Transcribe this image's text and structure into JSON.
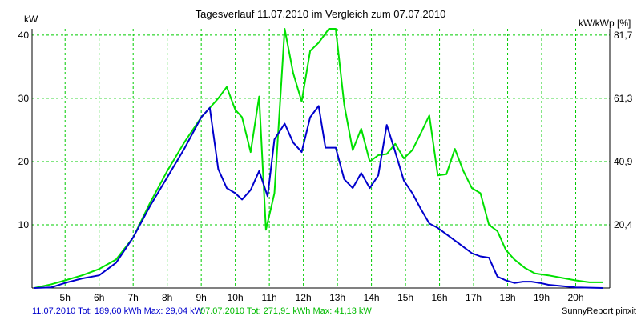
{
  "chart_data": {
    "type": "line",
    "title": "Tagesverlauf 11.07.2010 im Vergleich zum 07.07.2010",
    "ylabel_left": "kW",
    "ylabel_right": "kW/kWp [%]",
    "x_ticks": [
      {
        "t": 5,
        "label": "5h"
      },
      {
        "t": 6,
        "label": "6h"
      },
      {
        "t": 7,
        "label": "7h"
      },
      {
        "t": 8,
        "label": "8h"
      },
      {
        "t": 9,
        "label": "9h"
      },
      {
        "t": 10,
        "label": "10h"
      },
      {
        "t": 11,
        "label": "11h"
      },
      {
        "t": 12,
        "label": "12h"
      },
      {
        "t": 13,
        "label": "13h"
      },
      {
        "t": 14,
        "label": "14h"
      },
      {
        "t": 15,
        "label": "15h"
      },
      {
        "t": 16,
        "label": "16h"
      },
      {
        "t": 17,
        "label": "17h"
      },
      {
        "t": 18,
        "label": "18h"
      },
      {
        "t": 19,
        "label": "19h"
      },
      {
        "t": 20,
        "label": "20h"
      }
    ],
    "xlim": [
      4.03,
      21.0
    ],
    "ylim": [
      0,
      41
    ],
    "y_ticks_left": [
      {
        "v": 10,
        "label": "10"
      },
      {
        "v": 20,
        "label": "20"
      },
      {
        "v": 30,
        "label": "30"
      },
      {
        "v": 40,
        "label": "40"
      }
    ],
    "y_ticks_right": [
      {
        "v": 10,
        "label": "20,4"
      },
      {
        "v": 20,
        "label": "40,9"
      },
      {
        "v": 30,
        "label": "61,3"
      },
      {
        "v": 40,
        "label": "81,7"
      }
    ],
    "series": [
      {
        "color": "#00e000",
        "points": [
          [
            4.1,
            0.0
          ],
          [
            4.6,
            0.6
          ],
          [
            5.0,
            1.2
          ],
          [
            5.5,
            2.0
          ],
          [
            6.0,
            3.0
          ],
          [
            6.5,
            4.5
          ],
          [
            7.0,
            8.0
          ],
          [
            7.5,
            13.5
          ],
          [
            8.0,
            18.5
          ],
          [
            8.5,
            23.0
          ],
          [
            9.0,
            27.0
          ],
          [
            9.25,
            28.5
          ],
          [
            9.5,
            30.0
          ],
          [
            9.75,
            31.8
          ],
          [
            10.0,
            28.2
          ],
          [
            10.2,
            27.0
          ],
          [
            10.45,
            21.5
          ],
          [
            10.7,
            30.3
          ],
          [
            10.9,
            9.2
          ],
          [
            11.15,
            15.0
          ],
          [
            11.45,
            41.0
          ],
          [
            11.7,
            34.0
          ],
          [
            11.95,
            29.5
          ],
          [
            12.2,
            37.5
          ],
          [
            12.45,
            38.8
          ],
          [
            12.75,
            41.0
          ],
          [
            12.95,
            41.0
          ],
          [
            13.2,
            29.0
          ],
          [
            13.45,
            21.8
          ],
          [
            13.7,
            25.2
          ],
          [
            13.95,
            20.0
          ],
          [
            14.2,
            21.0
          ],
          [
            14.45,
            21.2
          ],
          [
            14.7,
            22.8
          ],
          [
            14.95,
            20.5
          ],
          [
            15.2,
            21.8
          ],
          [
            15.45,
            24.5
          ],
          [
            15.7,
            27.3
          ],
          [
            15.95,
            17.8
          ],
          [
            16.2,
            18.0
          ],
          [
            16.45,
            22.0
          ],
          [
            16.7,
            18.5
          ],
          [
            16.95,
            15.8
          ],
          [
            17.2,
            15.0
          ],
          [
            17.45,
            10.0
          ],
          [
            17.7,
            9.0
          ],
          [
            17.95,
            6.0
          ],
          [
            18.2,
            4.5
          ],
          [
            18.5,
            3.2
          ],
          [
            18.8,
            2.3
          ],
          [
            19.2,
            2.0
          ],
          [
            19.6,
            1.6
          ],
          [
            20.0,
            1.2
          ],
          [
            20.4,
            0.9
          ],
          [
            20.8,
            0.9
          ]
        ]
      },
      {
        "color": "#0000cc",
        "points": [
          [
            4.1,
            0.0
          ],
          [
            4.6,
            0.1
          ],
          [
            5.0,
            0.8
          ],
          [
            5.5,
            1.5
          ],
          [
            6.0,
            2.0
          ],
          [
            6.5,
            4.0
          ],
          [
            7.0,
            8.0
          ],
          [
            7.5,
            13.0
          ],
          [
            8.0,
            17.5
          ],
          [
            8.5,
            22.0
          ],
          [
            9.0,
            27.0
          ],
          [
            9.25,
            28.5
          ],
          [
            9.5,
            18.8
          ],
          [
            9.75,
            15.8
          ],
          [
            10.0,
            15.0
          ],
          [
            10.2,
            14.0
          ],
          [
            10.45,
            15.5
          ],
          [
            10.7,
            18.5
          ],
          [
            10.95,
            14.5
          ],
          [
            11.15,
            23.5
          ],
          [
            11.45,
            26.0
          ],
          [
            11.7,
            23.0
          ],
          [
            11.95,
            21.5
          ],
          [
            12.2,
            27.0
          ],
          [
            12.45,
            28.8
          ],
          [
            12.65,
            22.2
          ],
          [
            12.95,
            22.2
          ],
          [
            13.2,
            17.2
          ],
          [
            13.45,
            15.8
          ],
          [
            13.7,
            18.2
          ],
          [
            13.95,
            15.8
          ],
          [
            14.2,
            17.8
          ],
          [
            14.45,
            25.8
          ],
          [
            14.7,
            21.5
          ],
          [
            14.95,
            17.0
          ],
          [
            15.2,
            15.0
          ],
          [
            15.45,
            12.5
          ],
          [
            15.7,
            10.2
          ],
          [
            15.95,
            9.5
          ],
          [
            16.2,
            8.5
          ],
          [
            16.45,
            7.5
          ],
          [
            16.7,
            6.5
          ],
          [
            16.95,
            5.5
          ],
          [
            17.2,
            5.0
          ],
          [
            17.45,
            4.8
          ],
          [
            17.7,
            1.8
          ],
          [
            17.95,
            1.2
          ],
          [
            18.2,
            0.8
          ],
          [
            18.45,
            1.0
          ],
          [
            18.7,
            1.0
          ],
          [
            18.95,
            0.8
          ],
          [
            19.2,
            0.5
          ],
          [
            19.6,
            0.3
          ],
          [
            20.0,
            0.1
          ],
          [
            20.8,
            0.0
          ]
        ]
      }
    ],
    "grid": true
  },
  "footer": {
    "series1_label": "11.07.2010 Tot: 189,60 kWh Max: 29,04 kW",
    "series2_label": "07.07.2010 Tot: 271,91 kWh Max: 41,13 kW",
    "credit": "SunnyReport pinxit"
  }
}
